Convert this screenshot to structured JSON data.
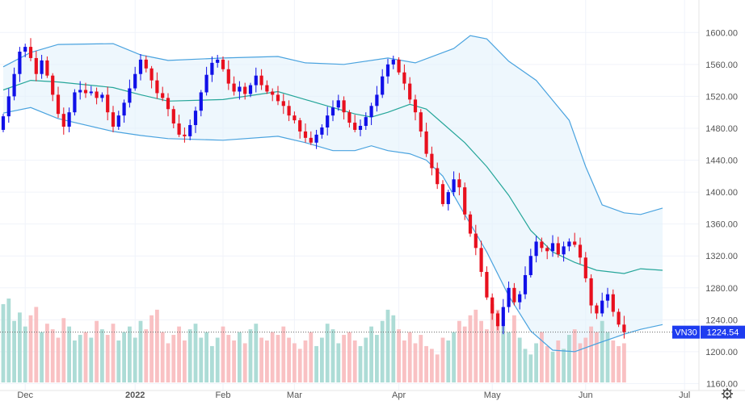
{
  "chart_data": {
    "type": "candlestick",
    "instrument": "VN30",
    "last_price": "1224.54",
    "last_price_value": 1224.54,
    "y_range": [
      1160,
      1620
    ],
    "y_ticks": [
      "1160.00",
      "1200.00",
      "1240.00",
      "1280.00",
      "1320.00",
      "1360.00",
      "1400.00",
      "1440.00",
      "1480.00",
      "1520.00",
      "1560.00",
      "1600.00"
    ],
    "x_ticks": [
      {
        "label": "Dec",
        "index": 4
      },
      {
        "label": "2022",
        "index": 24
      },
      {
        "label": "Feb",
        "index": 40
      },
      {
        "label": "Mar",
        "index": 53
      },
      {
        "label": "Apr",
        "index": 72
      },
      {
        "label": "May",
        "index": 89
      },
      {
        "label": "Jun",
        "index": 106
      },
      {
        "label": "Jul",
        "index": 124
      }
    ],
    "close": [
      1495,
      1520,
      1548,
      1576,
      1582,
      1568,
      1548,
      1565,
      1546,
      1522,
      1498,
      1482,
      1500,
      1525,
      1528,
      1524,
      1526,
      1518,
      1522,
      1500,
      1482,
      1496,
      1512,
      1530,
      1548,
      1566,
      1555,
      1540,
      1524,
      1518,
      1504,
      1486,
      1472,
      1470,
      1484,
      1502,
      1525,
      1547,
      1562,
      1566,
      1554,
      1536,
      1526,
      1532,
      1523,
      1534,
      1546,
      1534,
      1526,
      1522,
      1514,
      1508,
      1496,
      1490,
      1476,
      1468,
      1462,
      1472,
      1481,
      1496,
      1506,
      1515,
      1500,
      1487,
      1478,
      1483,
      1494,
      1508,
      1522,
      1545,
      1560,
      1566,
      1550,
      1536,
      1516,
      1500,
      1476,
      1448,
      1430,
      1410,
      1385,
      1400,
      1416,
      1406,
      1372,
      1348,
      1330,
      1300,
      1268,
      1248,
      1232,
      1256,
      1280,
      1262,
      1272,
      1296,
      1320,
      1338,
      1330,
      1326,
      1336,
      1322,
      1332,
      1338,
      1334,
      1318,
      1292,
      1258,
      1248,
      1264,
      1272,
      1250,
      1234,
      1224.54
    ],
    "open": [
      1478,
      1495,
      1520,
      1548,
      1576,
      1582,
      1568,
      1548,
      1565,
      1546,
      1522,
      1498,
      1482,
      1500,
      1525,
      1528,
      1524,
      1526,
      1518,
      1522,
      1500,
      1482,
      1496,
      1512,
      1530,
      1548,
      1566,
      1555,
      1540,
      1524,
      1518,
      1504,
      1486,
      1472,
      1470,
      1484,
      1502,
      1525,
      1547,
      1562,
      1566,
      1554,
      1536,
      1526,
      1532,
      1523,
      1534,
      1546,
      1534,
      1526,
      1522,
      1514,
      1508,
      1496,
      1490,
      1476,
      1468,
      1462,
      1472,
      1481,
      1496,
      1506,
      1515,
      1500,
      1487,
      1478,
      1483,
      1494,
      1508,
      1522,
      1545,
      1560,
      1566,
      1550,
      1536,
      1516,
      1500,
      1476,
      1448,
      1430,
      1410,
      1385,
      1400,
      1416,
      1406,
      1372,
      1348,
      1330,
      1300,
      1268,
      1248,
      1232,
      1256,
      1280,
      1262,
      1272,
      1296,
      1320,
      1338,
      1330,
      1326,
      1336,
      1322,
      1332,
      1338,
      1334,
      1318,
      1292,
      1258,
      1248,
      1264,
      1272,
      1250,
      1234
    ],
    "volume": [
      28,
      30,
      22,
      25,
      20,
      24,
      27,
      18,
      21,
      19,
      16,
      23,
      20,
      15,
      17,
      18,
      16,
      22,
      19,
      17,
      21,
      15,
      18,
      20,
      16,
      22,
      19,
      24,
      26,
      18,
      14,
      17,
      20,
      15,
      19,
      21,
      16,
      18,
      13,
      16,
      20,
      17,
      15,
      18,
      14,
      19,
      21,
      16,
      15,
      18,
      17,
      20,
      16,
      14,
      12,
      15,
      18,
      13,
      16,
      21,
      19,
      14,
      17,
      18,
      15,
      13,
      16,
      20,
      17,
      22,
      26,
      24,
      19,
      15,
      18,
      14,
      17,
      13,
      12,
      10,
      16,
      15,
      18,
      22,
      20,
      24,
      26,
      22,
      19,
      28,
      26,
      20,
      18,
      24,
      16,
      12,
      10,
      14,
      18,
      13,
      11,
      15,
      12,
      17,
      19,
      14,
      16,
      20,
      18,
      22,
      18,
      15,
      13,
      14
    ],
    "bollinger": {
      "upper_pts": [
        [
          0,
          1557
        ],
        [
          5,
          1575
        ],
        [
          10,
          1585
        ],
        [
          20,
          1586
        ],
        [
          25,
          1572
        ],
        [
          30,
          1565
        ],
        [
          40,
          1568
        ],
        [
          50,
          1570
        ],
        [
          55,
          1562
        ],
        [
          62,
          1560
        ],
        [
          70,
          1568
        ],
        [
          75,
          1562
        ],
        [
          82,
          1580
        ],
        [
          85,
          1596
        ],
        [
          88,
          1592
        ],
        [
          92,
          1564
        ],
        [
          97,
          1540
        ],
        [
          103,
          1490
        ],
        [
          106,
          1432
        ],
        [
          109,
          1384
        ],
        [
          113,
          1374
        ],
        [
          116,
          1372
        ],
        [
          120,
          1380
        ]
      ],
      "middle_pts": [
        [
          0,
          1528
        ],
        [
          5,
          1540
        ],
        [
          10,
          1538
        ],
        [
          20,
          1531
        ],
        [
          25,
          1522
        ],
        [
          30,
          1514
        ],
        [
          40,
          1516
        ],
        [
          50,
          1526
        ],
        [
          55,
          1516
        ],
        [
          60,
          1506
        ],
        [
          64,
          1498
        ],
        [
          67,
          1494
        ],
        [
          70,
          1500
        ],
        [
          74,
          1510
        ],
        [
          77,
          1504
        ],
        [
          80,
          1486
        ],
        [
          84,
          1462
        ],
        [
          88,
          1432
        ],
        [
          92,
          1396
        ],
        [
          96,
          1352
        ],
        [
          100,
          1325
        ],
        [
          104,
          1312
        ],
        [
          108,
          1302
        ],
        [
          113,
          1298
        ],
        [
          116,
          1304
        ],
        [
          120,
          1302
        ]
      ],
      "lower_pts": [
        [
          0,
          1499
        ],
        [
          5,
          1506
        ],
        [
          10,
          1492
        ],
        [
          20,
          1476
        ],
        [
          25,
          1471
        ],
        [
          30,
          1467
        ],
        [
          40,
          1465
        ],
        [
          50,
          1470
        ],
        [
          55,
          1462
        ],
        [
          60,
          1452
        ],
        [
          64,
          1452
        ],
        [
          67,
          1458
        ],
        [
          70,
          1452
        ],
        [
          74,
          1448
        ],
        [
          77,
          1440
        ],
        [
          80,
          1420
        ],
        [
          84,
          1372
        ],
        [
          88,
          1325
        ],
        [
          92,
          1270
        ],
        [
          96,
          1226
        ],
        [
          100,
          1202
        ],
        [
          104,
          1200
        ],
        [
          108,
          1210
        ],
        [
          113,
          1222
        ],
        [
          116,
          1228
        ],
        [
          120,
          1234
        ]
      ]
    }
  }
}
